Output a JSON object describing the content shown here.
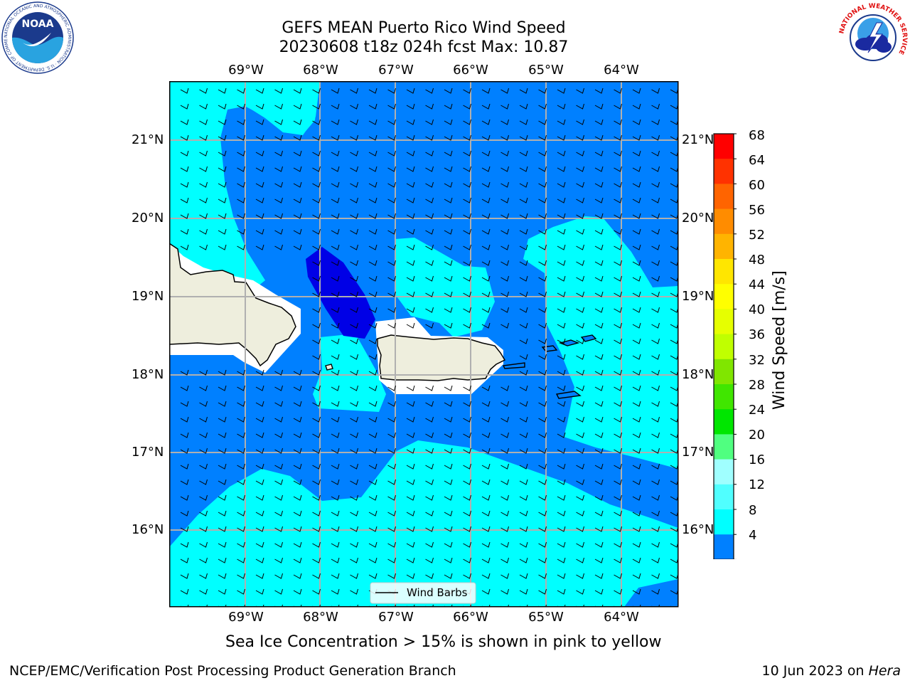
{
  "header": {
    "title_line1": "GEFS MEAN Puerto Rico Wind Speed",
    "title_line2": "20230608 t18z 024h fcst   Max: 10.87"
  },
  "logos": {
    "noaa_text": "NOAA",
    "noaa_ring_text": "NATIONAL OCEANIC AND ATMOSPHERIC ADMINISTRATION · U.S. DEPARTMENT OF COMMERCE",
    "nws_ring_text": "NATIONAL WEATHER SERVICE"
  },
  "map": {
    "lon_labels": [
      "69°W",
      "68°W",
      "67°W",
      "66°W",
      "65°W",
      "64°W"
    ],
    "lat_labels": [
      "21°N",
      "20°N",
      "19°N",
      "18°N",
      "17°N",
      "16°N"
    ],
    "legend_label": "Wind Barbs",
    "colors": {
      "land": "#eeeedd",
      "level_4_8": "#0080ff",
      "level_8_12": "#00ffff",
      "level_below_4": "#0000e6",
      "grid": "#b0b0b0"
    }
  },
  "colorbar": {
    "title": "Wind Speed [m/s]",
    "ticks": [
      "68",
      "64",
      "60",
      "56",
      "52",
      "48",
      "44",
      "40",
      "36",
      "32",
      "28",
      "24",
      "20",
      "16",
      "12",
      "8",
      "4"
    ],
    "colors": [
      "#0000e6",
      "#0080ff",
      "#00ffff",
      "#50ffff",
      "#a0ffff",
      "#50ff80",
      "#00e600",
      "#40e600",
      "#80e600",
      "#c0ff00",
      "#e6ff00",
      "#ffff00",
      "#ffe600",
      "#ffb400",
      "#ff8c00",
      "#ff6400",
      "#ff3200",
      "#ff0000"
    ]
  },
  "footer": {
    "note": "Sea Ice Concentration > 15% is shown in pink to yellow",
    "branch": "NCEP/EMC/Verification Post Processing Product Generation Branch",
    "date": "10 Jun 2023 on ",
    "machine": "Hera"
  }
}
